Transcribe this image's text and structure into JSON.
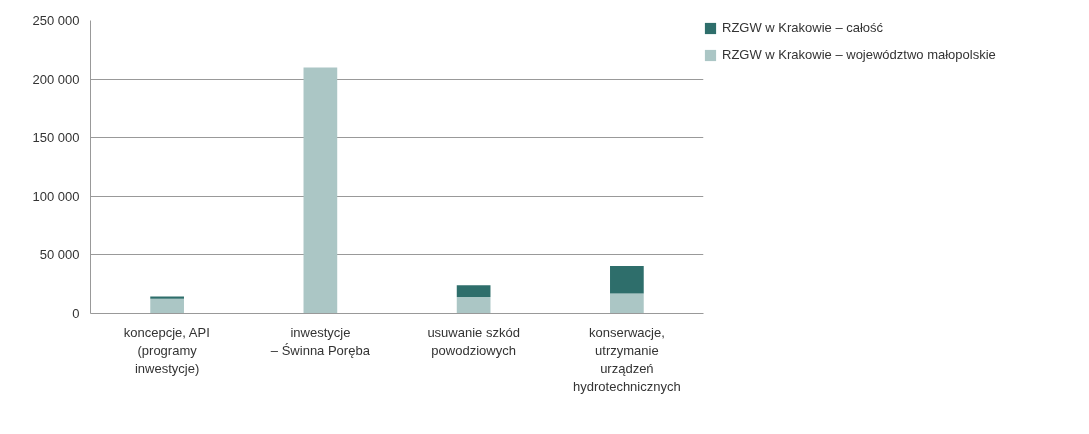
{
  "chart_data": {
    "type": "bar",
    "stacked": true,
    "categories": [
      "koncepcje, API\n(programy\ninwestycje)",
      "inwestycje\n– Świnna Poręba",
      "usuwanie szkód\npowodziowych",
      "konserwacje,\nutrzymanie\nurządzeń\nhydrotechnicznych"
    ],
    "series": [
      {
        "name": "RZGW w Krakowie – województwo małopolskie",
        "color": "#abc6c5",
        "values": [
          12500,
          210000,
          14000,
          17000
        ]
      },
      {
        "name": "RZGW w Krakowie – całość",
        "color": "#2e6e6b",
        "values": [
          2000,
          null,
          10000,
          23500
        ]
      }
    ],
    "ylim": [
      0,
      250000
    ],
    "yticks": [
      {
        "value": 0,
        "label": "0"
      },
      {
        "value": 50000,
        "label": "50 000"
      },
      {
        "value": 100000,
        "label": "100 000"
      },
      {
        "value": 150000,
        "label": "150 000"
      },
      {
        "value": 200000,
        "label": "200 000"
      },
      {
        "value": 250000,
        "label": "250 000"
      }
    ],
    "grid": "y",
    "legend": "right"
  }
}
